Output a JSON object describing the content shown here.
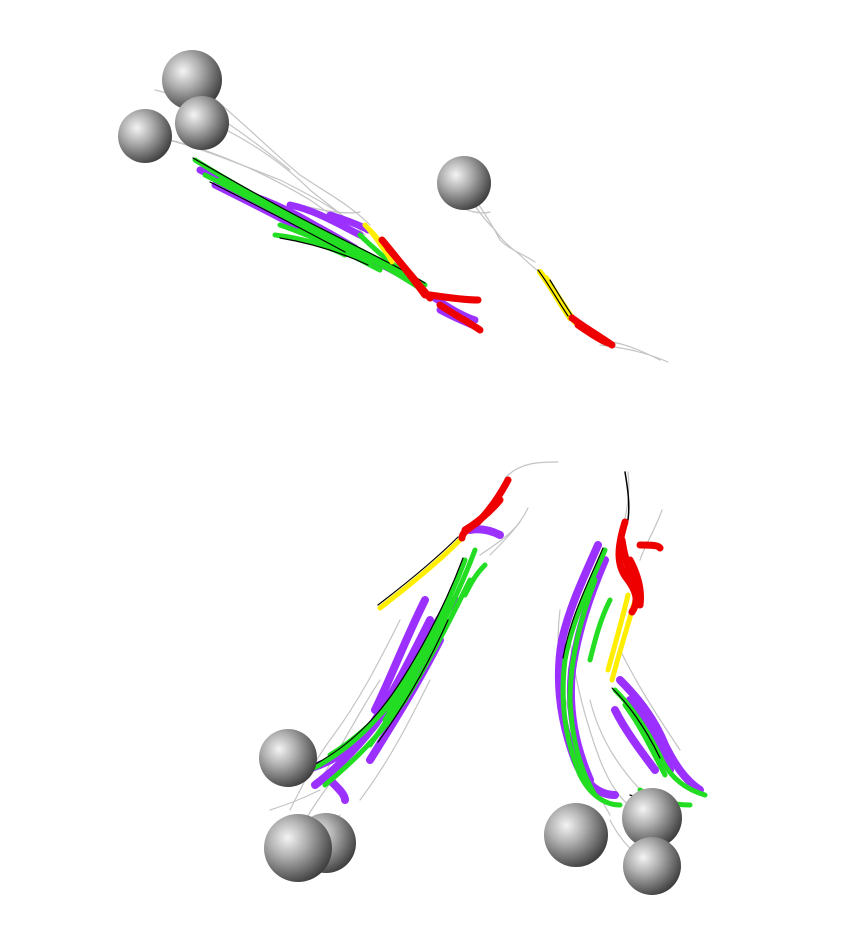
{
  "colors": {
    "background": "#ffffff",
    "backbone_trace": "#bdbdbd",
    "outline": "#000000",
    "purple": "#9b30ff",
    "green": "#22dd22",
    "yellow": "#ffee00",
    "red": "#ee0000",
    "sphere_light": "#f2f2f2",
    "sphere_mid": "#a0a0a0",
    "sphere_dark": "#4a4a4a"
  },
  "scene": {
    "description_label": "",
    "ensembles": [
      {
        "id": "ensemble-top-left",
        "sphere_count": 3
      },
      {
        "id": "ensemble-top-right",
        "sphere_count": 1
      },
      {
        "id": "ensemble-bottom-left",
        "sphere_count": 3
      },
      {
        "id": "ensemble-bottom-right",
        "sphere_count": 3
      }
    ]
  }
}
